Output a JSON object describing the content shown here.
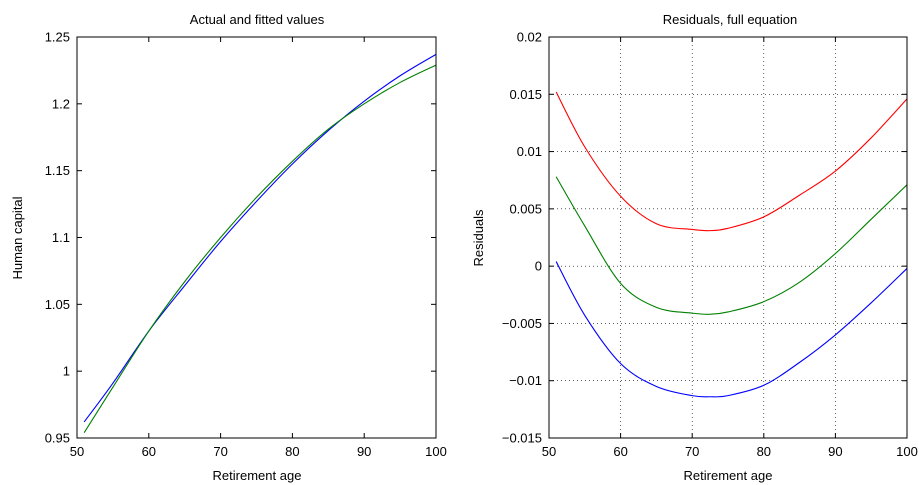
{
  "chart_data": [
    {
      "type": "line",
      "title": "Actual and fitted values",
      "xlabel": "Retirement age",
      "ylabel": "Human capital",
      "xlim": [
        50,
        100
      ],
      "ylim": [
        0.95,
        1.25
      ],
      "xticks": [
        50,
        60,
        70,
        80,
        90,
        100
      ],
      "yticks": [
        0.95,
        1.0,
        1.05,
        1.1,
        1.15,
        1.2,
        1.25
      ],
      "xtick_labels": [
        "50",
        "60",
        "70",
        "80",
        "90",
        "100"
      ],
      "ytick_labels": [
        "0.95",
        "1",
        "1.05",
        "1.1",
        "1.15",
        "1.2",
        "1.25"
      ],
      "grid": false,
      "x": [
        51,
        55,
        60,
        65,
        70,
        75,
        80,
        85,
        90,
        95,
        100
      ],
      "series": [
        {
          "color": "#0000ff",
          "values": [
            0.962,
            0.991,
            1.03,
            1.064,
            1.097,
            1.127,
            1.155,
            1.18,
            1.202,
            1.221,
            1.237
          ]
        },
        {
          "color": "#008000",
          "values": [
            0.954,
            0.988,
            1.03,
            1.067,
            1.1,
            1.13,
            1.157,
            1.181,
            1.2,
            1.216,
            1.229
          ]
        }
      ]
    },
    {
      "type": "line",
      "title": "Residuals, full equation",
      "xlabel": "Retirement age",
      "ylabel": "Residuals",
      "xlim": [
        50,
        100
      ],
      "ylim": [
        -0.015,
        0.02
      ],
      "xticks": [
        50,
        60,
        70,
        80,
        90,
        100
      ],
      "yticks": [
        -0.015,
        -0.01,
        -0.005,
        0,
        0.005,
        0.01,
        0.015,
        0.02
      ],
      "xtick_labels": [
        "50",
        "60",
        "70",
        "80",
        "90",
        "100"
      ],
      "ytick_labels": [
        "−0.015",
        "−0.01",
        "−0.005",
        "0",
        "0.005",
        "0.01",
        "0.015",
        "0.02"
      ],
      "grid": true,
      "x": [
        51,
        55,
        60,
        65,
        70,
        72.5,
        75,
        80,
        85,
        90,
        95,
        100
      ],
      "series": [
        {
          "color": "#ff0000",
          "values": [
            0.0152,
            0.0104,
            0.0061,
            0.0037,
            0.0032,
            0.0031,
            0.0033,
            0.0043,
            0.0062,
            0.0083,
            0.0112,
            0.0146
          ]
        },
        {
          "color": "#008000",
          "values": [
            0.0078,
            0.0035,
            -0.0015,
            -0.0036,
            -0.0041,
            -0.0042,
            -0.004,
            -0.0031,
            -0.0014,
            0.0011,
            0.0041,
            0.0071
          ]
        },
        {
          "color": "#0000ff",
          "values": [
            0.0004,
            -0.0043,
            -0.0085,
            -0.0105,
            -0.0113,
            -0.0114,
            -0.0113,
            -0.0104,
            -0.0084,
            -0.006,
            -0.0032,
            -0.0002
          ]
        }
      ]
    }
  ]
}
